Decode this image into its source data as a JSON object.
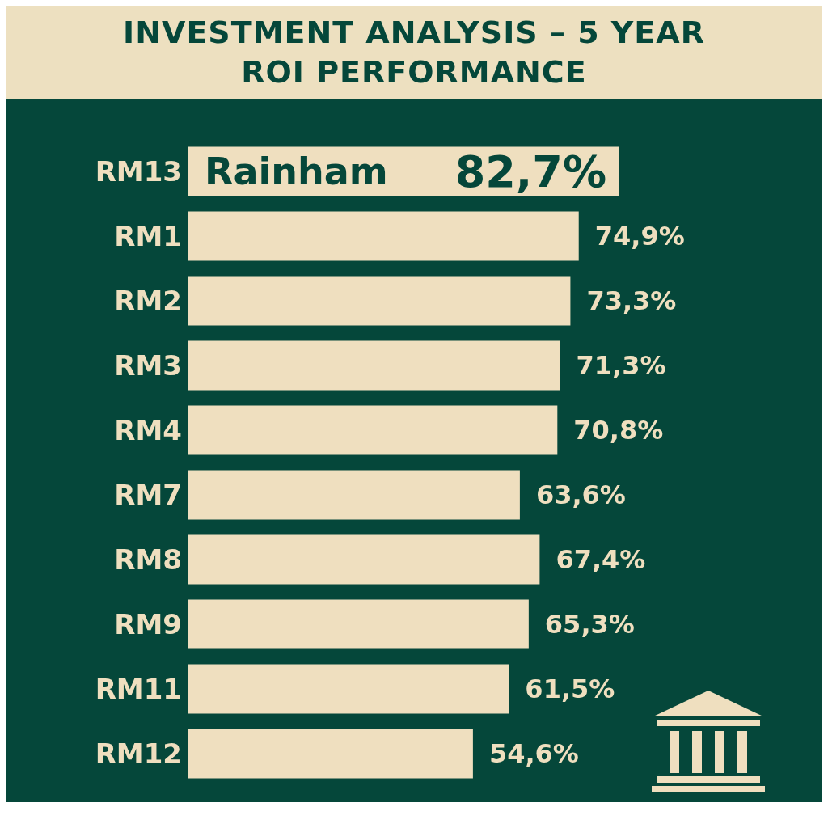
{
  "chart_data": {
    "type": "bar",
    "orientation": "horizontal",
    "title": "INVESTMENT ANALYSIS – 5 YEAR ROI PERFORMANCE",
    "categories": [
      "RM13",
      "RM1",
      "RM2",
      "RM3",
      "RM4",
      "RM7",
      "RM8",
      "RM9",
      "RM11",
      "RM12"
    ],
    "values": [
      82.7,
      74.9,
      73.3,
      71.3,
      70.8,
      63.6,
      67.4,
      65.3,
      61.5,
      54.6
    ],
    "value_labels": [
      "82,7%",
      "74,9%",
      "73,3%",
      "71,3%",
      "70,8%",
      "63,6%",
      "67,4%",
      "65,3%",
      "61,5%",
      "54,6%"
    ],
    "color": "#efdfbf",
    "annotations": [
      "Rainham"
    ],
    "tick_labels": "y"
  }
}
